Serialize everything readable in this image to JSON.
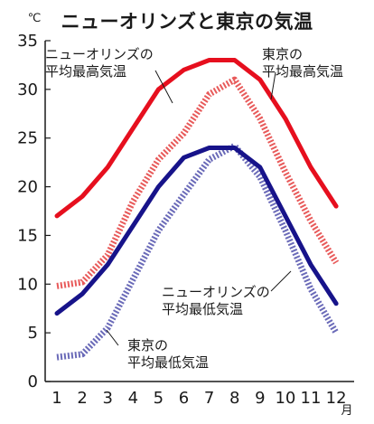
{
  "chart_data": {
    "type": "line",
    "title": "ニューオリンズと東京の気温",
    "y_unit": "℃",
    "x_unit": "月",
    "categories": [
      "1",
      "2",
      "3",
      "4",
      "5",
      "6",
      "7",
      "8",
      "9",
      "10",
      "11",
      "12"
    ],
    "ylim": [
      0,
      35
    ],
    "yticks": [
      "0",
      "5",
      "10",
      "15",
      "20",
      "25",
      "30",
      "35"
    ],
    "grid": false,
    "series": [
      {
        "key": "no_max",
        "name_lines": [
          "ニューオリンズの",
          "平均最高気温"
        ],
        "color": "#e60f1e",
        "style": "solid",
        "values": [
          17,
          19,
          22,
          26,
          30,
          32,
          33,
          33,
          31,
          27,
          22,
          18
        ]
      },
      {
        "key": "tk_max",
        "name_lines": [
          "東京の",
          "平均最高気温"
        ],
        "color": "#e85a5a",
        "style": "dotted",
        "values": [
          9.8,
          10.2,
          13,
          18.5,
          22.8,
          25.5,
          29.5,
          31,
          27,
          21.5,
          16.5,
          12.2
        ]
      },
      {
        "key": "no_min",
        "name_lines": [
          "ニューオリンズの",
          "平均最低気温"
        ],
        "color": "#17138a",
        "style": "solid",
        "values": [
          7,
          9,
          12,
          16,
          20,
          23,
          24,
          24,
          22,
          17,
          12,
          8
        ]
      },
      {
        "key": "tk_min",
        "name_lines": [
          "東京の",
          "平均最低気温"
        ],
        "color": "#6a6ab8",
        "style": "dotted",
        "values": [
          2.5,
          2.8,
          5.5,
          10.5,
          15.5,
          19.2,
          22.8,
          24.2,
          21,
          15.5,
          9.5,
          5
        ]
      }
    ]
  }
}
